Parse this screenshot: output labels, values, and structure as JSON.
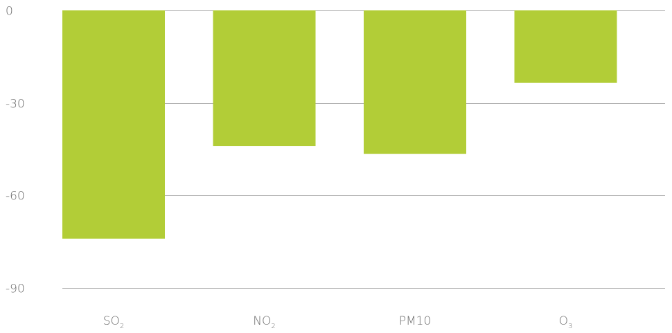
{
  "chart_data": {
    "type": "bar",
    "categories": [
      "SO2",
      "NO2",
      "PM10",
      "O3"
    ],
    "category_labels": [
      {
        "base": "SO",
        "sub": "2"
      },
      {
        "base": "NO",
        "sub": "2"
      },
      {
        "base": "PM10",
        "sub": ""
      },
      {
        "base": "O",
        "sub": "3"
      }
    ],
    "values": [
      -74,
      -44,
      -46.5,
      -23.5
    ],
    "ylim": [
      -90,
      0
    ],
    "yticks": [
      0,
      -30,
      -60,
      -90
    ],
    "ytick_labels": [
      "0",
      "-30",
      "-60",
      "-90"
    ],
    "grid": true,
    "bar_color": "#b2cd37",
    "title": "",
    "xlabel": "",
    "ylabel": ""
  }
}
